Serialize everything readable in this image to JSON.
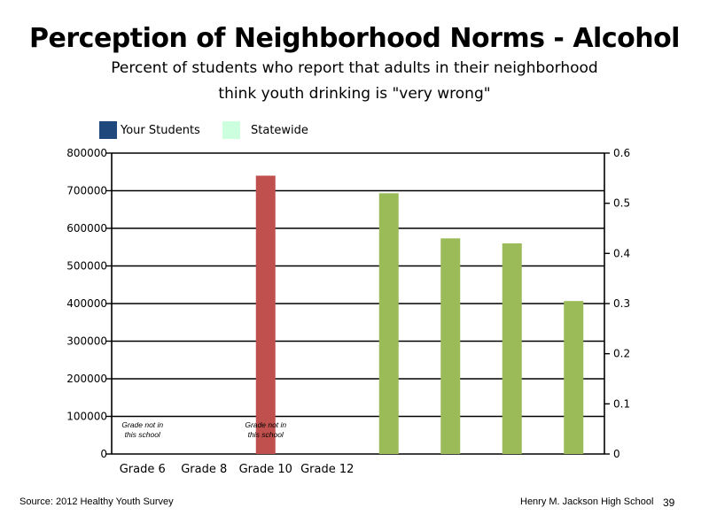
{
  "chart_data": {
    "type": "bar",
    "title": "Perception of Neighborhood Norms - Alcohol",
    "subtitle_line1": "Percent of students who report that adults in their neighborhood",
    "subtitle_line2": "think youth drinking is \"very wrong\"",
    "categories": [
      "Grade 6",
      "Grade 8",
      "Grade 10",
      "Grade 12"
    ],
    "legend": [
      {
        "label": "Your Students",
        "color": "#1f497d"
      },
      {
        "label": "Statewide",
        "color": "#ccffdd"
      }
    ],
    "legend_position": "top-left",
    "grid": true,
    "left_axis": {
      "ylim": [
        0,
        800000
      ],
      "ticks": [
        "0",
        "100000",
        "200000",
        "300000",
        "400000",
        "500000",
        "600000",
        "700000",
        "800000"
      ]
    },
    "right_axis": {
      "ylim": [
        0,
        0.6
      ],
      "ticks": [
        "0",
        "0.1",
        "0.2",
        "0.3",
        "0.4",
        "0.5",
        "0.6"
      ]
    },
    "series": [
      {
        "axis": "left",
        "color": "#c0504d",
        "points": [
          {
            "category": "Grade 10",
            "value": 740000
          }
        ]
      },
      {
        "axis": "right",
        "color": "#9bbb59",
        "values": [
          0.52,
          0.43,
          0.42,
          0.305
        ]
      }
    ],
    "annotations": [
      {
        "category": "Grade 6",
        "line1": "Grade not in",
        "line2": "this school"
      },
      {
        "category": "Grade 10",
        "line1": "Grade not in",
        "line2": "this school"
      }
    ]
  },
  "footer": {
    "source": "Source: 2012 Healthy Youth Survey",
    "school": "Henry M. Jackson High School",
    "page": "39"
  }
}
